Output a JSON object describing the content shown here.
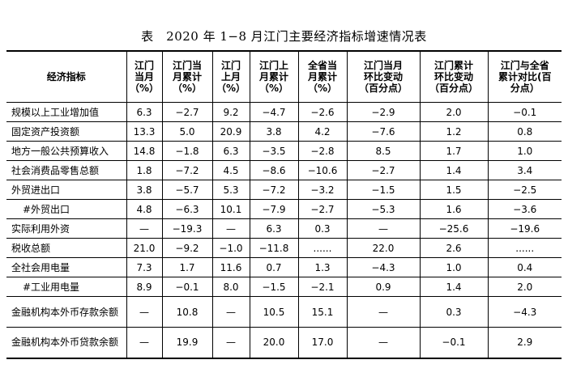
{
  "title": "表　2020 年 1−8 月江门主要经济指标增速情况表",
  "headers": [
    "经济指标",
    "江门\n当月\n（%）",
    "江门当\n月累计\n（%）",
    "江门\n上月\n（%）",
    "江门上\n月累计\n（%）",
    "全省当\n月累计\n（%）",
    "江门当月\n环比变动\n（百分点）",
    "江门累计\n环比变动\n（百分点）",
    "江门与全省\n累计对比(百\n分点）"
  ],
  "rows": [
    [
      "规模以上工业增加值",
      "6.3",
      "−2.7",
      "9.2",
      "−4.7",
      "−2.6",
      "−2.9",
      "2.0",
      "−0.1"
    ],
    [
      "固定资产投资额",
      "13.3",
      "5.0",
      "20.9",
      "3.8",
      "4.2",
      "−7.6",
      "1.2",
      "0.8"
    ],
    [
      "地方一般公共预算收入",
      "14.8",
      "−1.8",
      "6.3",
      "−3.5",
      "−2.8",
      "8.5",
      "1.7",
      "1.0"
    ],
    [
      "社会消费品零售总额",
      "1.8",
      "−7.2",
      "4.5",
      "−8.6",
      "−10.6",
      "−2.7",
      "1.4",
      "3.4"
    ],
    [
      "外贸进出口",
      "3.8",
      "−5.7",
      "5.3",
      "−7.2",
      "−3.2",
      "−1.5",
      "1.5",
      "−2.5"
    ],
    [
      "#外贸出口",
      "4.8",
      "−6.3",
      "10.1",
      "−7.9",
      "−2.7",
      "−5.3",
      "1.6",
      "−3.6"
    ],
    [
      "实际利用外资",
      "—",
      "−19.3",
      "—",
      "6.3",
      "0.3",
      "—",
      "−25.6",
      "−19.6"
    ],
    [
      "税收总额",
      "21.0",
      "−9.2",
      "−1.0",
      "−11.8",
      "......",
      "22.0",
      "2.6",
      "......"
    ],
    [
      "全社会用电量",
      "7.3",
      "1.7",
      "11.6",
      "0.7",
      "1.3",
      "−4.3",
      "1.0",
      "0.4"
    ],
    [
      "#工业用电量",
      "8.9",
      "−0.1",
      "8.0",
      "−1.5",
      "−2.1",
      "0.9",
      "1.4",
      "2.0"
    ],
    [
      "金融机构本外币存款余额",
      "—",
      "10.8",
      "—",
      "10.5",
      "15.1",
      "—",
      "0.3",
      "−4.3"
    ],
    [
      "金融机构本外币贷款余额",
      "—",
      "19.9",
      "—",
      "20.0",
      "17.0",
      "—",
      "−0.1",
      "2.9"
    ]
  ]
}
